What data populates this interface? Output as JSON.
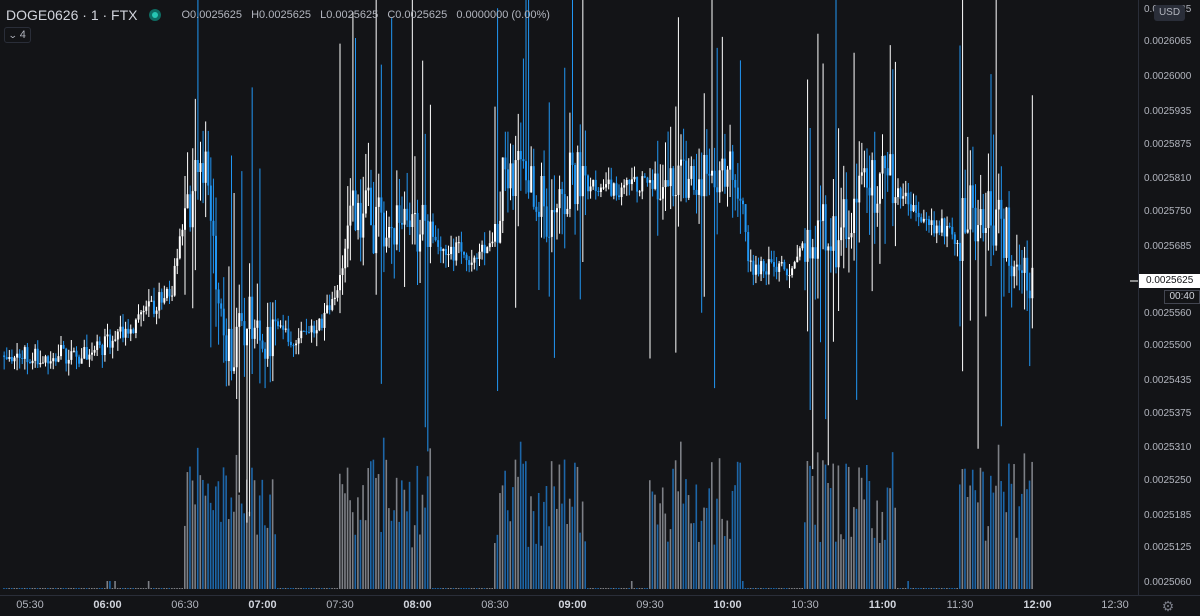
{
  "legend": {
    "symbol": "DOGE0626 · 1 · FTX",
    "open": "O0.0025625",
    "high": "H0.0025625",
    "low": "L0.0025625",
    "close": "C0.0025625",
    "change": "0.0000000 (0.00%)"
  },
  "indicator_toggle": {
    "count": "4"
  },
  "price_axis": {
    "currency": "USD",
    "current_price": "0.0025625",
    "countdown": "00:40",
    "ticks": [
      "0.0026125",
      "0.0026065",
      "0.0026000",
      "0.0025935",
      "0.0025875",
      "0.0025810",
      "0.0025750",
      "0.0025685",
      "0.0025560",
      "0.0025500",
      "0.0025435",
      "0.0025375",
      "0.0025310",
      "0.0025250",
      "0.0025185",
      "0.0025125",
      "0.0025060"
    ]
  },
  "time_axis": {
    "ticks": [
      {
        "label": "05:30",
        "bold": false
      },
      {
        "label": "06:00",
        "bold": true
      },
      {
        "label": "06:30",
        "bold": false
      },
      {
        "label": "07:00",
        "bold": true
      },
      {
        "label": "07:30",
        "bold": false
      },
      {
        "label": "08:00",
        "bold": true
      },
      {
        "label": "08:30",
        "bold": false
      },
      {
        "label": "09:00",
        "bold": true
      },
      {
        "label": "09:30",
        "bold": false
      },
      {
        "label": "10:00",
        "bold": true
      },
      {
        "label": "10:30",
        "bold": false
      },
      {
        "label": "11:00",
        "bold": true
      },
      {
        "label": "11:30",
        "bold": false
      },
      {
        "label": "12:00",
        "bold": true
      },
      {
        "label": "12:30",
        "bold": false
      }
    ]
  },
  "colors": {
    "background": "#131417",
    "up": "#ffffff",
    "down": "#2196f3",
    "axis_text": "#b2b5be"
  },
  "chart_data": {
    "type": "candlestick",
    "title": "DOGE0626 · 1 · FTX",
    "interval_minutes": 1,
    "x_range": [
      "05:30",
      "12:30"
    ],
    "y_range": [
      0.002506,
      0.0026125
    ],
    "price_path": [
      [
        "05:20",
        0.0025483
      ],
      [
        "05:52",
        0.0025485
      ],
      [
        "05:56",
        0.0025492
      ],
      [
        "06:00",
        0.0025508
      ],
      [
        "06:06",
        0.0025525
      ],
      [
        "06:12",
        0.0025547
      ],
      [
        "06:18",
        0.0025575
      ],
      [
        "06:25",
        0.002561
      ],
      [
        "06:30",
        0.0025738
      ],
      [
        "06:33",
        0.002576
      ],
      [
        "06:36",
        0.002585
      ],
      [
        "06:39",
        0.00258
      ],
      [
        "06:41",
        0.00257
      ],
      [
        "06:43",
        0.002556
      ],
      [
        "06:45",
        0.002552
      ],
      [
        "06:48",
        0.00255
      ],
      [
        "06:53",
        0.002551
      ],
      [
        "06:55",
        0.002555
      ],
      [
        "07:00",
        0.0025525
      ],
      [
        "07:05",
        0.002553
      ],
      [
        "07:10",
        0.0025515
      ],
      [
        "07:15",
        0.0025515
      ],
      [
        "07:20",
        0.0025535
      ],
      [
        "07:25",
        0.002556
      ],
      [
        "07:30",
        0.00256
      ],
      [
        "07:32",
        0.00257
      ],
      [
        "07:36",
        0.002576
      ],
      [
        "07:40",
        0.002574
      ],
      [
        "07:45",
        0.002572
      ],
      [
        "07:50",
        0.002575
      ],
      [
        "07:54",
        0.002572
      ],
      [
        "07:58",
        0.002573
      ],
      [
        "08:03",
        0.002571
      ],
      [
        "08:07",
        0.00257
      ],
      [
        "08:12",
        0.002567
      ],
      [
        "08:17",
        0.002568
      ],
      [
        "08:22",
        0.002566
      ],
      [
        "08:27",
        0.002568
      ],
      [
        "08:30",
        0.00257
      ],
      [
        "08:33",
        0.00258
      ],
      [
        "08:38",
        0.002581
      ],
      [
        "08:43",
        0.002578
      ],
      [
        "08:48",
        0.002577
      ],
      [
        "08:52",
        0.002575
      ],
      [
        "08:57",
        0.00258
      ],
      [
        "09:00",
        0.0025815
      ],
      [
        "09:06",
        0.0025805
      ],
      [
        "09:12",
        0.00258
      ],
      [
        "09:18",
        0.002579
      ],
      [
        "09:24",
        0.0025805
      ],
      [
        "09:30",
        0.0025805
      ],
      [
        "09:36",
        0.00258
      ],
      [
        "09:42",
        0.002581
      ],
      [
        "09:48",
        0.002583
      ],
      [
        "09:54",
        0.002583
      ],
      [
        "09:58",
        0.0025825
      ],
      [
        "10:03",
        0.002581
      ],
      [
        "10:06",
        0.002575
      ],
      [
        "10:08",
        0.002565
      ],
      [
        "10:12",
        0.002565
      ],
      [
        "10:18",
        0.0025645
      ],
      [
        "10:24",
        0.0025645
      ],
      [
        "10:30",
        0.00257
      ],
      [
        "10:36",
        0.002573
      ],
      [
        "10:42",
        0.00257
      ],
      [
        "10:48",
        0.002576
      ],
      [
        "10:54",
        0.00258
      ],
      [
        "11:00",
        0.002581
      ],
      [
        "11:06",
        0.002579
      ],
      [
        "11:12",
        0.002576
      ],
      [
        "11:18",
        0.002573
      ],
      [
        "11:24",
        0.002572
      ],
      [
        "11:28",
        0.00257
      ],
      [
        "11:33",
        0.002574
      ],
      [
        "11:38",
        0.002576
      ],
      [
        "11:42",
        0.002574
      ],
      [
        "11:47",
        0.002571
      ],
      [
        "11:50",
        0.002569
      ],
      [
        "11:53",
        0.002569
      ],
      [
        "11:55",
        0.0025625
      ],
      [
        "11:58",
        0.0025625
      ]
    ],
    "volume_windows": [
      [
        "06:30",
        "07:05"
      ],
      [
        "07:30",
        "08:05"
      ],
      [
        "08:30",
        "09:05"
      ],
      [
        "09:30",
        "10:05"
      ],
      [
        "10:30",
        "11:05"
      ],
      [
        "11:30",
        "12:05"
      ]
    ]
  }
}
